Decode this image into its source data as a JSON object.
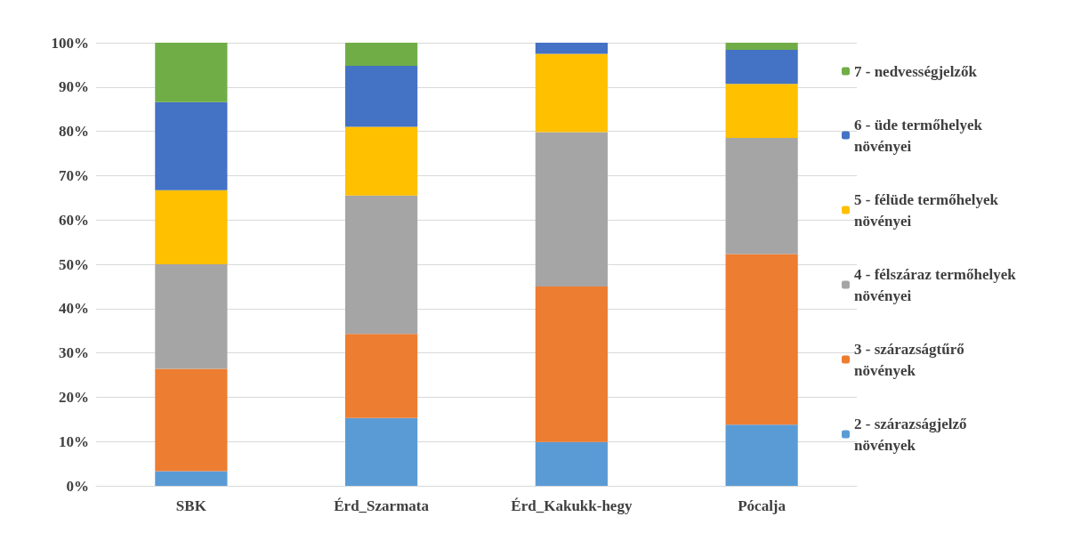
{
  "chart_data": {
    "type": "bar",
    "stacked": true,
    "categories": [
      "SBK",
      "Érd_Szarmata",
      "Érd_Kakukk-hegy",
      "Pócalja"
    ],
    "series": [
      {
        "name": "2 - szárazságjelző növények",
        "color": "#5b9bd5",
        "values": [
          3.3,
          15.3,
          9.9,
          13.8
        ]
      },
      {
        "name": "3 - szárazságtűrő növények",
        "color": "#ed7d31",
        "values": [
          23.1,
          19.0,
          35.1,
          38.5
        ]
      },
      {
        "name": "4 - félszáraz termőhelyek növényei",
        "color": "#a5a5a5",
        "values": [
          23.6,
          31.2,
          34.8,
          26.2
        ]
      },
      {
        "name": "5 - félüde termőhelyek növényei",
        "color": "#ffc000",
        "values": [
          16.7,
          15.5,
          17.7,
          12.2
        ]
      },
      {
        "name": "6 - üde termőhelyek növényei",
        "color": "#4472c4",
        "values": [
          19.9,
          13.8,
          2.5,
          7.7
        ]
      },
      {
        "name": "7 - nedvességjelzők",
        "color": "#70ad47",
        "values": [
          13.4,
          5.2,
          0,
          1.6
        ]
      }
    ],
    "ylim": [
      0,
      100
    ],
    "yticks": [
      {
        "value": 0,
        "label": "0%"
      },
      {
        "value": 10,
        "label": "10%"
      },
      {
        "value": 20,
        "label": "20%"
      },
      {
        "value": 30,
        "label": "30%"
      },
      {
        "value": 40,
        "label": "40%"
      },
      {
        "value": 50,
        "label": "50%"
      },
      {
        "value": 60,
        "label": "60%"
      },
      {
        "value": 70,
        "label": "70%"
      },
      {
        "value": 80,
        "label": "80%"
      },
      {
        "value": 90,
        "label": "90%"
      },
      {
        "value": 100,
        "label": "100%"
      }
    ],
    "grid": "y",
    "legend": "right"
  }
}
